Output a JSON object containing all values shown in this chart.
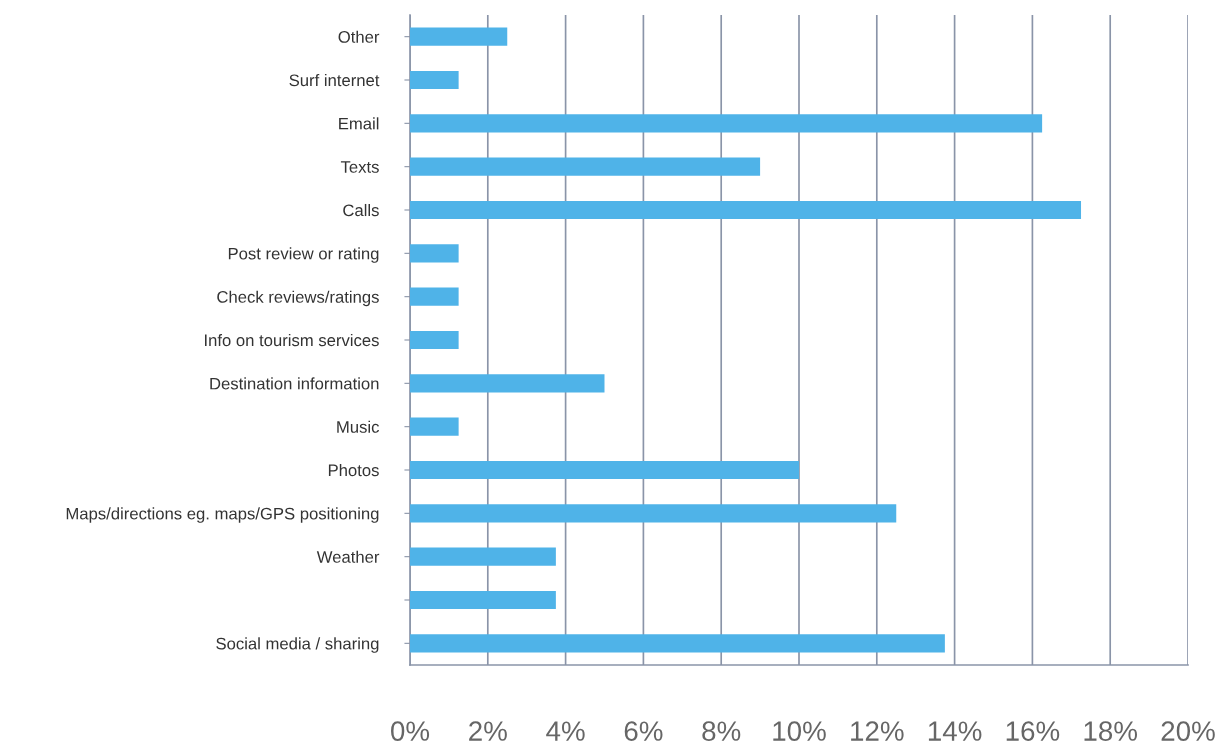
{
  "chart_data": {
    "type": "bar",
    "orientation": "horizontal",
    "categories": [
      "Other",
      "Surf internet",
      "Email",
      "Texts",
      "Calls",
      "Post review or rating",
      "Check reviews/ratings",
      "Info on tourism services",
      "Destination information",
      "Music",
      "Photos",
      "Maps/directions eg. maps/GPS positioning",
      "Weather",
      null,
      "Social media / sharing"
    ],
    "values": [
      2.5,
      1.25,
      16.25,
      9.0,
      17.25,
      1.25,
      1.25,
      1.25,
      5.0,
      1.25,
      10.0,
      12.5,
      3.75,
      3.75,
      13.75
    ],
    "color": "#4fb3e8",
    "xlim": [
      0,
      20
    ],
    "xticks": [
      {
        "value": 0,
        "label": "0%"
      },
      {
        "value": 2,
        "label": "2%"
      },
      {
        "value": 4,
        "label": "4%"
      },
      {
        "value": 6,
        "label": "6%"
      },
      {
        "value": 8,
        "label": "8%"
      },
      {
        "value": 10,
        "label": "10%"
      },
      {
        "value": 12,
        "label": "12%"
      },
      {
        "value": 14,
        "label": "14%"
      },
      {
        "value": 16,
        "label": "16%"
      },
      {
        "value": 18,
        "label": "18%"
      },
      {
        "value": 20,
        "label": "20%"
      }
    ],
    "grid": "x"
  }
}
